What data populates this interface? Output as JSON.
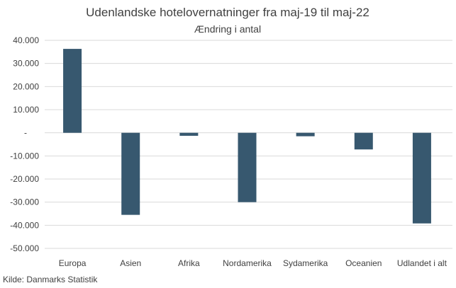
{
  "chart_data": {
    "type": "bar",
    "title": "Udenlandske hotelovernatninger fra maj-19 til maj-22",
    "subtitle": "Ændring i antal",
    "categories": [
      "Europa",
      "Asien",
      "Afrika",
      "Nordamerika",
      "Sydamerika",
      "Oceanien",
      "Udlandet i alt"
    ],
    "values": [
      36300,
      -35500,
      -1300,
      -30000,
      -1500,
      -7200,
      -39200
    ],
    "ylim": [
      -50000,
      40000
    ],
    "yticks": [
      40000,
      30000,
      20000,
      10000,
      0,
      -10000,
      -20000,
      -30000,
      -40000,
      -50000
    ],
    "ytick_labels": [
      "40.000",
      "30.000",
      "20.000",
      "10.000",
      "-",
      "-10.000",
      "-20.000",
      "-30.000",
      "-40.000",
      "-50.000"
    ],
    "grid": true,
    "bar_color": "#37586f",
    "source": "Kilde: Danmarks Statistik"
  }
}
